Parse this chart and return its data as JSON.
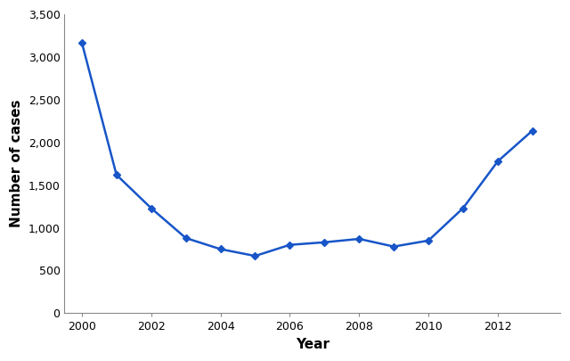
{
  "years": [
    2000,
    2001,
    2002,
    2003,
    2004,
    2005,
    2006,
    2007,
    2008,
    2009,
    2010,
    2011,
    2012,
    2013
  ],
  "values": [
    3170,
    1620,
    1230,
    880,
    750,
    670,
    800,
    830,
    870,
    780,
    850,
    1230,
    1778,
    2138
  ],
  "line_color": "#1755c8",
  "marker": "D",
  "marker_size": 4,
  "linewidth": 1.8,
  "xlabel": "Year",
  "ylabel": "Number of cases",
  "xlim": [
    1999.5,
    2013.8
  ],
  "ylim": [
    0,
    3500
  ],
  "yticks": [
    0,
    500,
    1000,
    1500,
    2000,
    2500,
    3000,
    3500
  ],
  "xticks": [
    2000,
    2002,
    2004,
    2006,
    2008,
    2010,
    2012
  ],
  "xlabel_fontsize": 11,
  "ylabel_fontsize": 11,
  "tick_fontsize": 9,
  "xlabel_fontweight": "bold",
  "ylabel_fontweight": "bold",
  "background_color": "#ffffff",
  "spine_color": "#888888"
}
